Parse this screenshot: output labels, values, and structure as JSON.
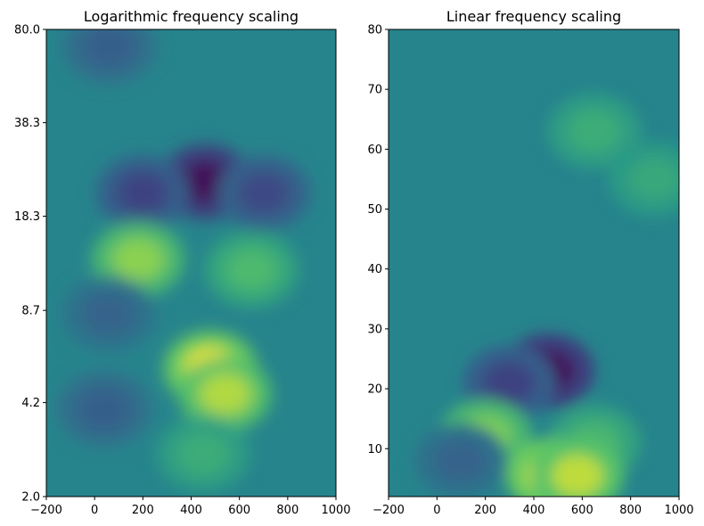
{
  "chart_data": [
    {
      "type": "heatmap",
      "title": "Logarithmic frequency scaling",
      "xlabel": "",
      "ylabel": "",
      "xlim": [
        -200,
        1000
      ],
      "ylim": [
        2.0,
        80.0
      ],
      "yscale": "log",
      "xticks": [
        -200,
        0,
        200,
        400,
        600,
        800,
        1000
      ],
      "xtick_labels": [
        "−200",
        "0",
        "200",
        "400",
        "600",
        "800",
        "1000"
      ],
      "yticks": [
        2.0,
        4.2,
        8.7,
        18.3,
        38.3,
        80.0
      ],
      "ytick_labels": [
        "2.0",
        "4.2",
        "8.7",
        "18.3",
        "38.3",
        "80.0"
      ],
      "colormap": "viridis",
      "grid": false,
      "features": [
        {
          "x": 460,
          "y": 24,
          "level": 0.02
        },
        {
          "x": 200,
          "y": 22,
          "level": 0.2
        },
        {
          "x": 700,
          "y": 22,
          "level": 0.22
        },
        {
          "x": 60,
          "y": 70,
          "level": 0.3
        },
        {
          "x": 180,
          "y": 13,
          "level": 0.82
        },
        {
          "x": 650,
          "y": 12,
          "level": 0.68
        },
        {
          "x": 480,
          "y": 5.5,
          "level": 0.98
        },
        {
          "x": 540,
          "y": 4.5,
          "level": 0.88
        },
        {
          "x": 40,
          "y": 4.0,
          "level": 0.3
        },
        {
          "x": 60,
          "y": 8.5,
          "level": 0.32
        },
        {
          "x": 450,
          "y": 2.8,
          "level": 0.62
        }
      ]
    },
    {
      "type": "heatmap",
      "title": "Linear frequency scaling",
      "xlabel": "",
      "ylabel": "",
      "xlim": [
        -200,
        1000
      ],
      "ylim": [
        2.0,
        80.0
      ],
      "yscale": "linear",
      "xticks": [
        -200,
        0,
        200,
        400,
        600,
        800,
        1000
      ],
      "xtick_labels": [
        "−200",
        "0",
        "200",
        "400",
        "600",
        "800",
        "1000"
      ],
      "yticks": [
        10,
        20,
        30,
        40,
        50,
        60,
        70,
        80
      ],
      "ytick_labels": [
        "10",
        "20",
        "30",
        "40",
        "50",
        "60",
        "70",
        "80"
      ],
      "colormap": "viridis",
      "grid": false,
      "features": [
        {
          "x": 460,
          "y": 23,
          "level": 0.02
        },
        {
          "x": 300,
          "y": 21,
          "level": 0.2
        },
        {
          "x": 200,
          "y": 12,
          "level": 0.8
        },
        {
          "x": 650,
          "y": 11,
          "level": 0.66
        },
        {
          "x": 480,
          "y": 5.5,
          "level": 0.98
        },
        {
          "x": 580,
          "y": 5.5,
          "level": 0.9
        },
        {
          "x": 100,
          "y": 8,
          "level": 0.32
        },
        {
          "x": 650,
          "y": 63,
          "level": 0.62
        },
        {
          "x": 900,
          "y": 55,
          "level": 0.6
        }
      ]
    }
  ]
}
